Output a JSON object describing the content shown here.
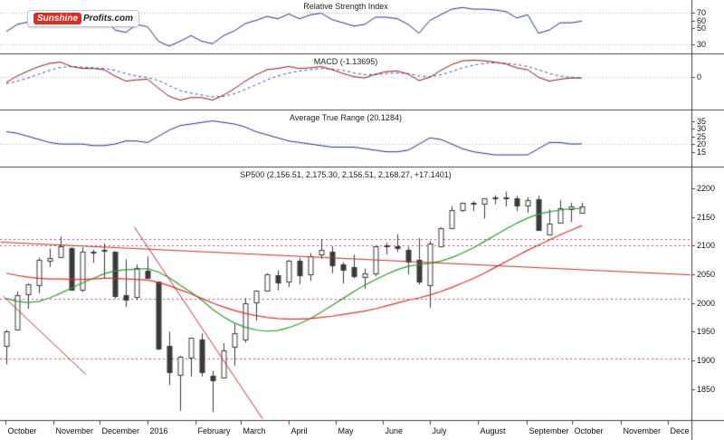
{
  "logo": {
    "brand_primary": "Sunshine",
    "brand_secondary": "Profits.com"
  },
  "colors": {
    "rsi_line": "#23308c",
    "macd_line": "#8b1a1a",
    "macd_signal": "#3f48cc",
    "atr_line": "#23308c",
    "candle": "#3a3a3a",
    "ma_green": "#2f9e2f",
    "ma_red": "#e03030",
    "trendline": "#c23030",
    "level_line": "#cc4466",
    "grid": "#b5b5b5",
    "frame": "#444444",
    "logo_red": "#e22a21"
  },
  "x_axis": {
    "months": [
      {
        "label": "October",
        "week": -0.1
      },
      {
        "label": "November",
        "week": 4.3
      },
      {
        "label": "December",
        "week": 8.6
      },
      {
        "label": "2016",
        "week": 13.0
      },
      {
        "label": "February",
        "week": 17.4
      },
      {
        "label": "March",
        "week": 21.6
      },
      {
        "label": "April",
        "week": 26.0
      },
      {
        "label": "May",
        "week": 30.3
      },
      {
        "label": "June",
        "week": 34.7
      },
      {
        "label": "July",
        "week": 39.0
      },
      {
        "label": "August",
        "week": 43.4
      },
      {
        "label": "September",
        "week": 47.9
      },
      {
        "label": "October",
        "week": 52.1
      },
      {
        "label": "November",
        "week": 56.6
      },
      {
        "label": "Dece",
        "week": 60.9
      }
    ]
  },
  "chart_data": [
    {
      "name": "rsi",
      "type": "line",
      "title": "Relative Strength Index",
      "ylim": [
        20,
        82
      ],
      "yticks": [
        70,
        60,
        50,
        30
      ],
      "gridlines": [
        70,
        30
      ],
      "values": [
        46,
        55,
        58,
        63,
        64,
        66,
        54,
        62,
        63,
        63,
        48,
        45,
        55,
        52,
        34,
        28,
        34,
        41,
        34,
        31,
        41,
        47,
        56,
        60,
        65,
        62,
        68,
        62,
        67,
        69,
        61,
        57,
        53,
        55,
        64,
        64,
        62,
        55,
        44,
        60,
        67,
        74,
        76,
        74,
        74,
        73,
        71,
        63,
        67,
        44,
        48,
        57,
        57,
        59
      ]
    },
    {
      "name": "macd",
      "type": "line",
      "title": "MACD (-1.13695)",
      "last_value": -1.13695,
      "ylim": [
        -48,
        32
      ],
      "yticks": [
        0
      ],
      "gridlines": [
        0
      ],
      "series": [
        {
          "name": "macd",
          "values": [
            -8,
            2,
            10,
            17,
            22,
            24,
            17,
            14,
            14,
            12,
            2,
            -6,
            -4,
            -3,
            -17,
            -30,
            -36,
            -32,
            -32,
            -36,
            -28,
            -18,
            -6,
            4,
            12,
            14,
            17,
            14,
            15,
            17,
            12,
            6,
            1,
            -1,
            5,
            9,
            10,
            5,
            -5,
            0,
            11,
            20,
            26,
            27,
            26,
            24,
            21,
            15,
            12,
            0,
            -6,
            -3,
            -1,
            -1.14
          ]
        },
        {
          "name": "signal",
          "style": "dashed",
          "values": [
            -10,
            -6,
            -1,
            5,
            11,
            16,
            17,
            16,
            15,
            14,
            11,
            6,
            2,
            0,
            -5,
            -13,
            -21,
            -25,
            -28,
            -31,
            -30,
            -26,
            -19,
            -12,
            -4,
            2,
            7,
            10,
            12,
            14,
            13,
            11,
            7,
            4,
            4,
            6,
            7,
            6,
            2,
            1,
            4,
            9,
            15,
            19,
            22,
            23,
            22,
            20,
            17,
            12,
            6,
            2,
            0,
            -1
          ]
        }
      ]
    },
    {
      "name": "atr",
      "type": "line",
      "title": "Average True Range (20.1284)",
      "last_value": 20.1284,
      "ylim": [
        6,
        40
      ],
      "yticks": [
        35,
        30,
        25,
        20,
        15
      ],
      "gridlines": [
        20
      ],
      "values": [
        28,
        27,
        25,
        23,
        21,
        20,
        20,
        20,
        19,
        19,
        20,
        22,
        22,
        21,
        25,
        29,
        32,
        33,
        34,
        35,
        34,
        33,
        31,
        28,
        26,
        24,
        22,
        21,
        20,
        19,
        18,
        18,
        18,
        17,
        16,
        15,
        15,
        16,
        20,
        24,
        23,
        20,
        17,
        15,
        14,
        13,
        13,
        13,
        13,
        17,
        21,
        21,
        20,
        20.13
      ]
    },
    {
      "name": "sp500",
      "type": "candlestick",
      "title": "SP500 (2,156.51, 2,175.30, 2,156.51, 2,168.27, +17.1401)",
      "last_quote": {
        "open": 2156.51,
        "high": 2175.3,
        "low": 2156.51,
        "close": 2168.27,
        "change": 17.1401
      },
      "ylim": [
        1796,
        2233
      ],
      "yticks": [
        2200,
        2150,
        2100,
        2050,
        2000,
        1950,
        1900,
        1850
      ],
      "dashed_levels": [
        2112,
        2100,
        2007,
        1904
      ],
      "ohlc": [
        [
          1926,
          1953,
          1893,
          1951
        ],
        [
          1954,
          2020,
          1954,
          2014
        ],
        [
          2015,
          2034,
          1990,
          2033
        ],
        [
          2031,
          2079,
          2017,
          2075
        ],
        [
          2075,
          2095,
          2063,
          2079
        ],
        [
          2080,
          2116,
          2080,
          2099
        ],
        [
          2096,
          2097,
          2022,
          2023
        ],
        [
          2022,
          2097,
          2019,
          2089
        ],
        [
          2089,
          2093,
          2070,
          2090
        ],
        [
          2090,
          2104,
          2042,
          2092
        ],
        [
          2090,
          2090,
          2008,
          2012
        ],
        [
          2013,
          2076,
          1993,
          2005
        ],
        [
          2011,
          2067,
          2005,
          2061
        ],
        [
          2057,
          2081,
          2043,
          2044
        ],
        [
          2038,
          2038,
          1918,
          1922
        ],
        [
          1926,
          1950,
          1857,
          1880
        ],
        [
          1876,
          1908,
          1812,
          1907
        ],
        [
          1906,
          1940,
          1872,
          1940
        ],
        [
          1937,
          1947,
          1872,
          1880
        ],
        [
          1873,
          1882,
          1810,
          1865
        ],
        [
          1871,
          1930,
          1871,
          1918
        ],
        [
          1924,
          1963,
          1891,
          1948
        ],
        [
          1937,
          2009,
          1931,
          2000
        ],
        [
          2002,
          2022,
          1969,
          2022
        ],
        [
          2022,
          2052,
          2022,
          2050
        ],
        [
          2048,
          2057,
          2022,
          2036
        ],
        [
          2037,
          2075,
          2028,
          2073
        ],
        [
          2073,
          2079,
          2033,
          2048
        ],
        [
          2050,
          2087,
          2039,
          2081
        ],
        [
          2084,
          2111,
          2077,
          2092
        ],
        [
          2089,
          2099,
          2052,
          2065
        ],
        [
          2067,
          2071,
          2034,
          2057
        ],
        [
          2062,
          2084,
          2043,
          2047
        ],
        [
          2046,
          2060,
          2025,
          2052
        ],
        [
          2052,
          2100,
          2047,
          2099
        ],
        [
          2100,
          2105,
          2085,
          2099
        ],
        [
          2099,
          2120,
          2089,
          2096
        ],
        [
          2092,
          2098,
          2050,
          2071
        ],
        [
          2075,
          2113,
          2032,
          2037
        ],
        [
          2031,
          2108,
          1992,
          2103
        ],
        [
          2099,
          2132,
          2099,
          2130
        ],
        [
          2131,
          2169,
          2131,
          2162
        ],
        [
          2162,
          2175,
          2159,
          2175
        ],
        [
          2175,
          2177,
          2160,
          2174
        ],
        [
          2173,
          2182,
          2147,
          2183
        ],
        [
          2183,
          2188,
          2172,
          2184
        ],
        [
          2184,
          2194,
          2168,
          2184
        ],
        [
          2182,
          2187,
          2160,
          2169
        ],
        [
          2171,
          2184,
          2157,
          2180
        ],
        [
          2181,
          2187,
          2127,
          2128
        ],
        [
          2120,
          2163,
          2119,
          2139
        ],
        [
          2139,
          2179,
          2139,
          2165
        ],
        [
          2164,
          2175,
          2141,
          2168
        ],
        [
          2156.51,
          2175.3,
          2156.51,
          2168.27
        ]
      ],
      "overlays": [
        {
          "name": "ma_fast",
          "color_key": "ma_green",
          "values": [
            2008,
            2003,
            2001,
            2003,
            2009,
            2017,
            2026,
            2035,
            2043,
            2051,
            2056,
            2058,
            2059,
            2060,
            2054,
            2044,
            2031,
            2019,
            2005,
            1989,
            1976,
            1965,
            1958,
            1953,
            1951,
            1952,
            1957,
            1964,
            1973,
            1984,
            1996,
            2008,
            2020,
            2031,
            2041,
            2050,
            2058,
            2064,
            2067,
            2069,
            2073,
            2079,
            2087,
            2096,
            2107,
            2118,
            2129,
            2139,
            2148,
            2155,
            2159,
            2162,
            2164,
            2165
          ]
        },
        {
          "name": "ma_slow",
          "color_key": "ma_red",
          "values": [
            2052,
            2048,
            2045,
            2043,
            2042,
            2042,
            2041,
            2041,
            2042,
            2043,
            2043,
            2042,
            2041,
            2040,
            2036,
            2030,
            2023,
            2016,
            2008,
            2000,
            1993,
            1987,
            1982,
            1978,
            1975,
            1973,
            1972,
            1972,
            1973,
            1975,
            1977,
            1980,
            1983,
            1986,
            1990,
            1995,
            2000,
            2005,
            2009,
            2014,
            2020,
            2027,
            2035,
            2043,
            2052,
            2062,
            2072,
            2082,
            2092,
            2101,
            2110,
            2119,
            2127,
            2135
          ]
        }
      ],
      "trendlines": [
        {
          "w1": -0.5,
          "v1": 2106,
          "w2": 63,
          "v2": 2049
        },
        {
          "w1": 11.8,
          "v1": 2132,
          "w2": 23.6,
          "v2": 1798
        },
        {
          "w1": -0.3,
          "v1": 2012,
          "w2": 7.3,
          "v2": 1876
        }
      ]
    }
  ]
}
